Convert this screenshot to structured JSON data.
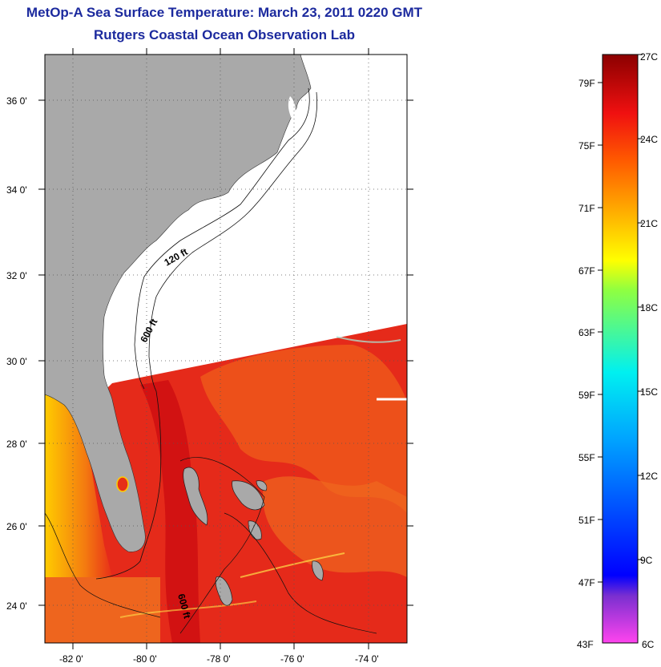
{
  "title": "MetOp-A Sea Surface Temperature:  March 23, 2011 0220 GMT",
  "subtitle": "Rutgers Coastal Ocean Observation Lab",
  "axes": {
    "lon_labels": [
      "-82 0'",
      "-80 0'",
      "-78 0'",
      "-76 0'",
      "-74 0'"
    ],
    "lat_labels": [
      "36 0'",
      "34 0'",
      "32 0'",
      "30 0'",
      "28 0'",
      "26 0'",
      "24 0'"
    ]
  },
  "contours": {
    "label_120": "120 ft",
    "label_600_north": "600 ft",
    "label_600_south": "600 ft"
  },
  "colorbar": {
    "fahrenheit": [
      "79F",
      "75F",
      "71F",
      "67F",
      "63F",
      "59F",
      "55F",
      "51F",
      "47F",
      "43F"
    ],
    "celsius": [
      "27C",
      "24C",
      "21C",
      "18C",
      "15C",
      "12C",
      "9C",
      "6C"
    ]
  },
  "colors": {
    "land": "#a9a9a9",
    "warm_sst": "#e01818",
    "title_blue": "#1c2a9e"
  }
}
